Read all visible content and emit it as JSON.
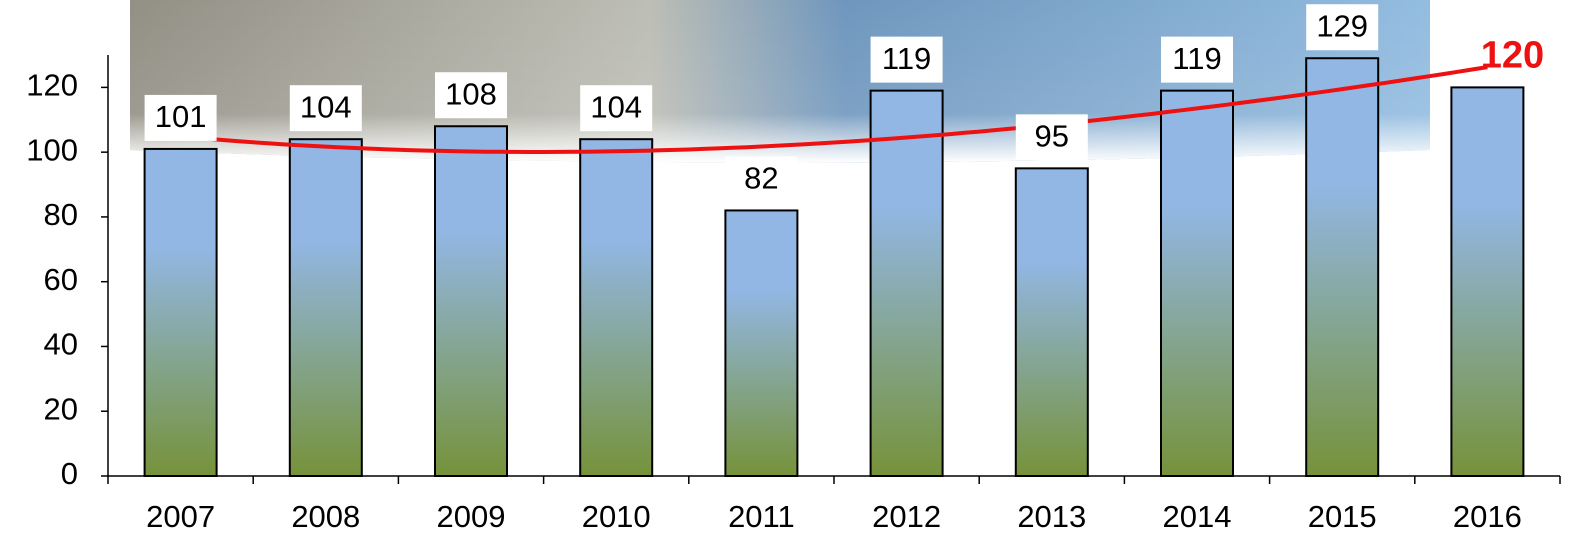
{
  "chart_data": {
    "type": "bar",
    "categories": [
      "2007",
      "2008",
      "2009",
      "2010",
      "2011",
      "2012",
      "2013",
      "2014",
      "2015",
      "2016"
    ],
    "values": [
      101,
      104,
      108,
      104,
      82,
      119,
      95,
      119,
      129,
      120
    ],
    "ylim": [
      0,
      130
    ],
    "yticks": [
      0,
      20,
      40,
      60,
      80,
      100,
      120
    ],
    "trendline": "polynomial",
    "trendline_color": "#ee1111",
    "last_label_color": "#ee1111"
  }
}
